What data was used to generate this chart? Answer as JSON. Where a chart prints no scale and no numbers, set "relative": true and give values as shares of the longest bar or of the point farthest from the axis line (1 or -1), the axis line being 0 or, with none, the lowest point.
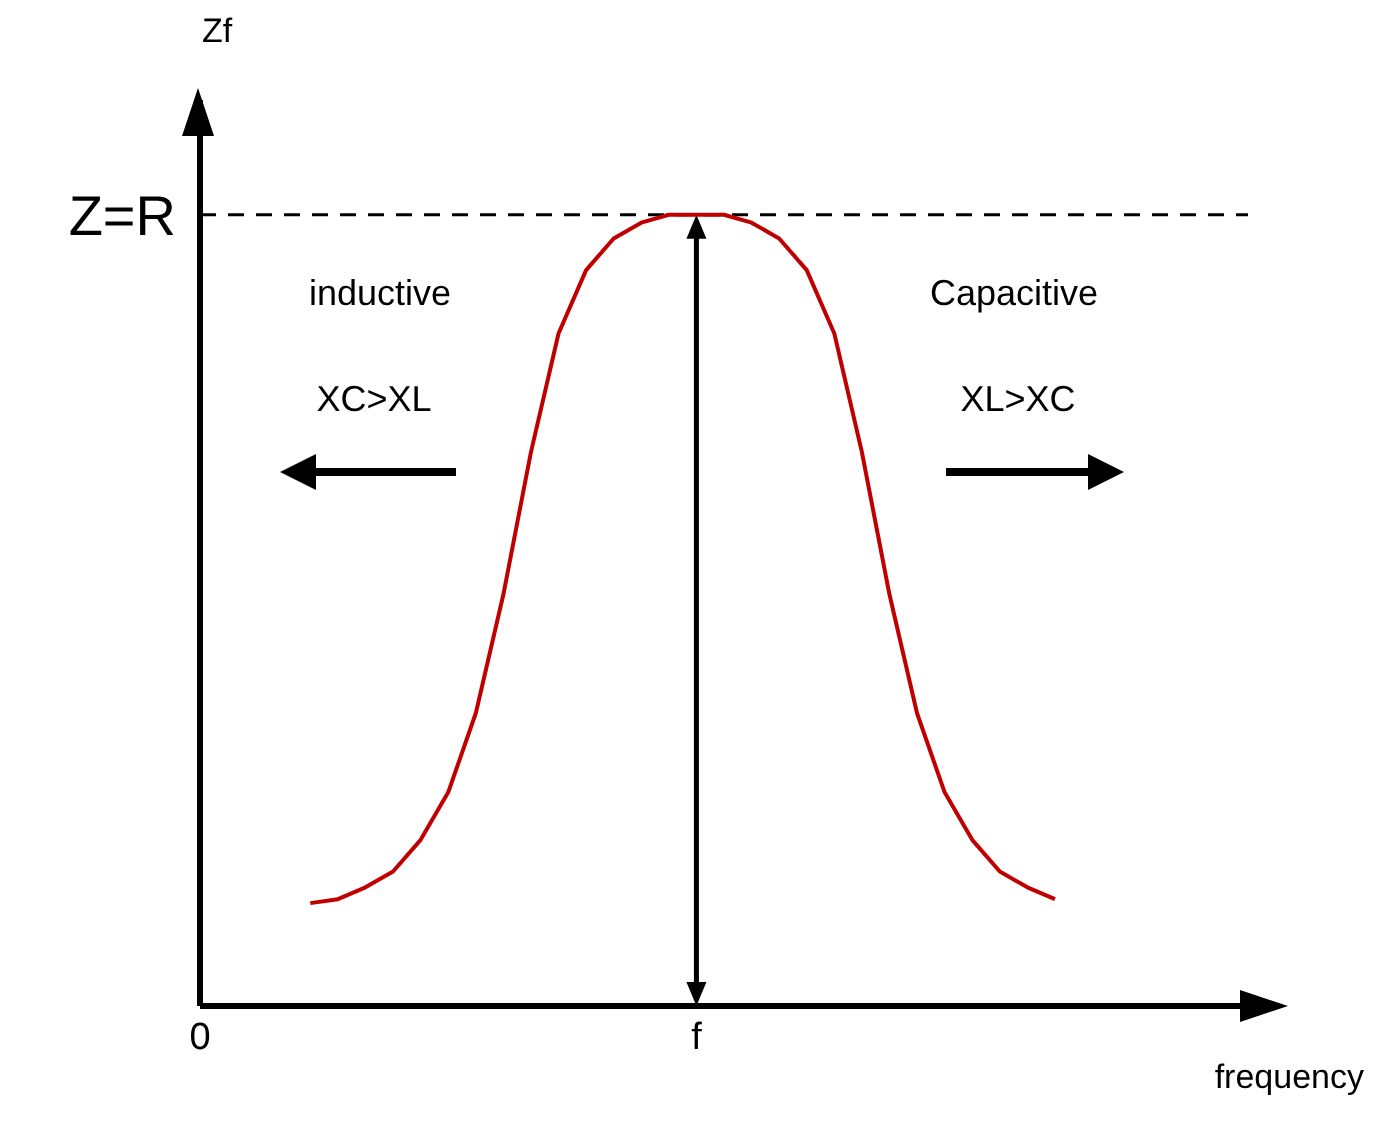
{
  "chart_data": {
    "type": "line",
    "relative": true,
    "xlabel": "frequency",
    "ylabel": "Zf",
    "categories": [
      "0",
      null,
      null,
      null,
      null,
      null,
      null,
      null,
      null,
      null,
      null,
      null,
      null,
      null,
      null,
      null,
      null,
      null,
      "f",
      null,
      null,
      null,
      null,
      null,
      null,
      null,
      null,
      null,
      null,
      null,
      null,
      null,
      null,
      null,
      null,
      null,
      null,
      null,
      null
    ],
    "series": [
      {
        "color": "#c00000",
        "values": [
          null,
          null,
          null,
          null,
          0.13,
          0.135,
          0.15,
          0.17,
          0.21,
          0.27,
          0.37,
          0.52,
          0.7,
          0.85,
          0.93,
          0.97,
          0.99,
          1.0,
          1.0,
          1.0,
          0.99,
          0.97,
          0.93,
          0.85,
          0.7,
          0.52,
          0.37,
          0.27,
          0.21,
          0.17,
          0.15,
          0.135,
          null,
          null,
          null,
          null,
          null,
          null,
          null
        ]
      }
    ],
    "ref_lines": [
      {
        "axis": "y",
        "value": 1,
        "label": "Z=R",
        "line_style": "dashed",
        "color": "#000000"
      },
      {
        "axis": "x",
        "value": "f",
        "color": "#000000"
      }
    ],
    "annotations": [
      "inductive",
      "Capacitive",
      "XC>XL",
      "XL>XC"
    ],
    "marker": "none",
    "line_style": "solid",
    "grid": false,
    "legend": false
  }
}
